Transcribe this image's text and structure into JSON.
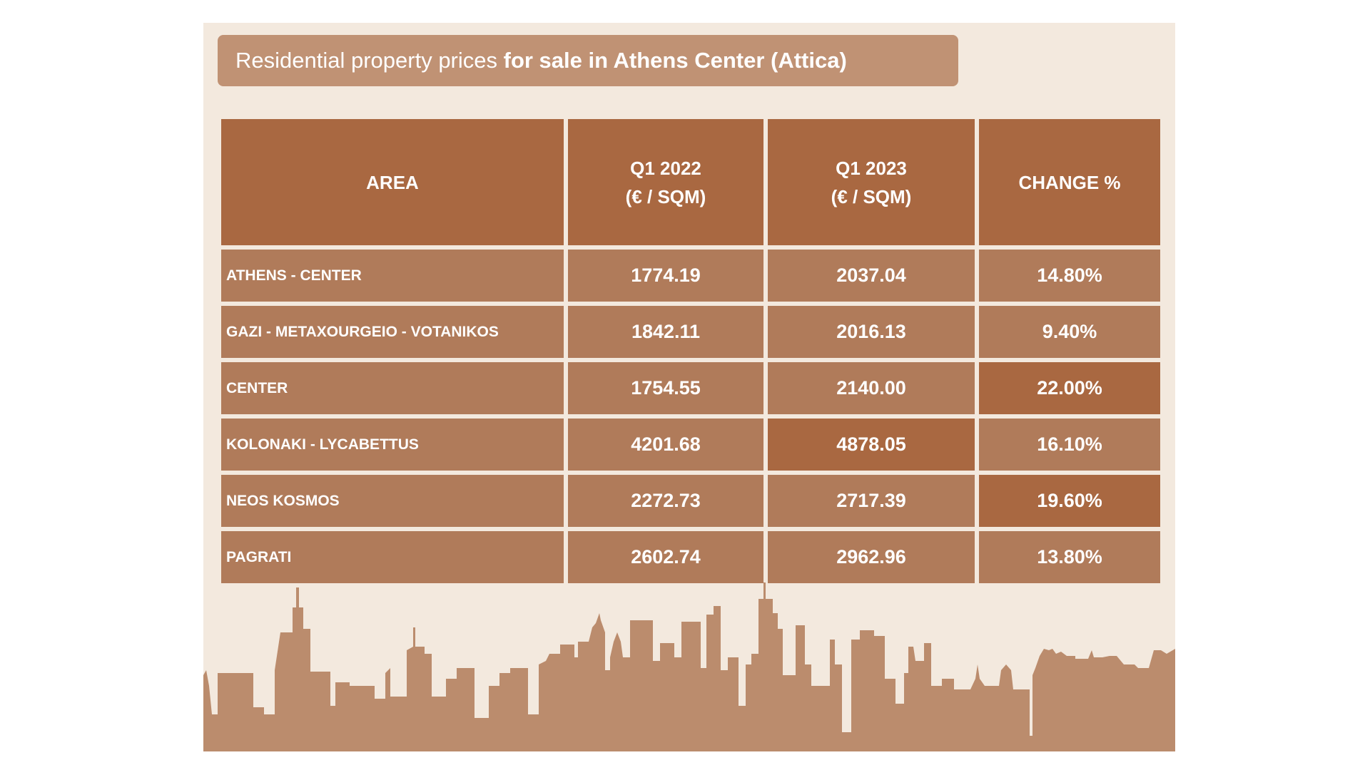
{
  "title": {
    "regular": "Residential property prices ",
    "bold": "for sale in Athens Center (Attica)"
  },
  "colors": {
    "background": "#f3e9de",
    "header_cell": "#a96841",
    "body_cell": "#b07b5a",
    "highlight_cell": "#a96841",
    "title_box": "#c09274",
    "skyline": "#bb8c6d"
  },
  "chart_data": {
    "type": "table",
    "columns": [
      {
        "line1": "AREA",
        "line2": ""
      },
      {
        "line1": "Q1 2022",
        "line2": "(€ / SQM)"
      },
      {
        "line1": "Q1 2023",
        "line2": "(€ / SQM)"
      },
      {
        "line1": "CHANGE %",
        "line2": ""
      }
    ],
    "rows": [
      {
        "area": "ATHENS - CENTER",
        "q1_2022": "1774.19",
        "q1_2023": "2037.04",
        "change": "14.80%"
      },
      {
        "area": "GAZI - METAXOURGEIO - VOTANIKOS",
        "q1_2022": "1842.11",
        "q1_2023": "2016.13",
        "change": "9.40%"
      },
      {
        "area": "CENTER",
        "q1_2022": "1754.55",
        "q1_2023": "2140.00",
        "change": "22.00%"
      },
      {
        "area": "KOLONAKI - LYCABETTUS",
        "q1_2022": "4201.68",
        "q1_2023": "4878.05",
        "change": "16.10%"
      },
      {
        "area": "NEOS KOSMOS",
        "q1_2022": "2272.73",
        "q1_2023": "2717.39",
        "change": "19.60%"
      },
      {
        "area": "PAGRATI",
        "q1_2022": "2602.74",
        "q1_2023": "2962.96",
        "change": "13.80%"
      }
    ],
    "highlighted": [
      {
        "row": 2,
        "col": "change"
      },
      {
        "row": 3,
        "col": "q1_2023"
      },
      {
        "row": 4,
        "col": "change"
      }
    ]
  }
}
